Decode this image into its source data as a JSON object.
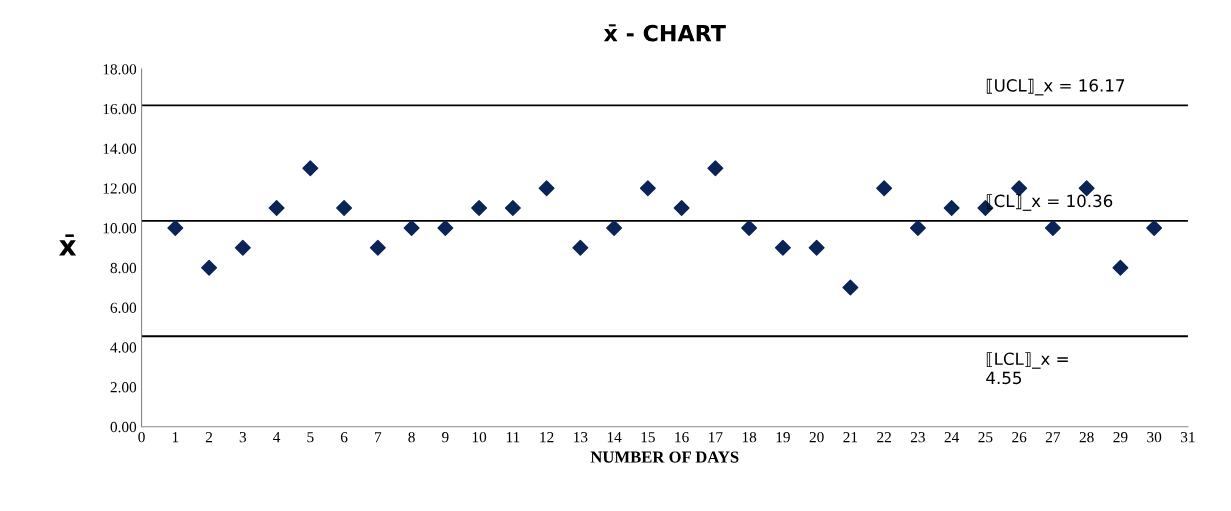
{
  "chart_data": {
    "type": "scatter",
    "title": "x̄ - CHART",
    "xlabel": "NUMBER OF DAYS",
    "ylabel": "x̄",
    "x": [
      1,
      2,
      3,
      4,
      5,
      6,
      7,
      8,
      9,
      10,
      11,
      12,
      13,
      14,
      15,
      16,
      17,
      18,
      19,
      20,
      21,
      22,
      23,
      24,
      25,
      26,
      27,
      28,
      29,
      30
    ],
    "series": [
      {
        "color": "#0a2458",
        "values": [
          10,
          8,
          9,
          11,
          13,
          11,
          9,
          10,
          10,
          11,
          11,
          12,
          9,
          10,
          12,
          11,
          13,
          10,
          9,
          9,
          7,
          12,
          10,
          11,
          11,
          12,
          10,
          12,
          8,
          10
        ]
      }
    ],
    "marker": "diamond",
    "grid": false,
    "legend": false,
    "xlim": [
      0,
      31
    ],
    "xticks": [
      0,
      1,
      2,
      3,
      4,
      5,
      6,
      7,
      8,
      9,
      10,
      11,
      12,
      13,
      14,
      15,
      16,
      17,
      18,
      19,
      20,
      21,
      22,
      23,
      24,
      25,
      26,
      27,
      28,
      29,
      30,
      31
    ],
    "ylim": [
      0,
      18
    ],
    "yticks": [
      {
        "value": 0,
        "label": "0.00"
      },
      {
        "value": 2,
        "label": "2.00"
      },
      {
        "value": 4,
        "label": "4.00"
      },
      {
        "value": 6,
        "label": "6.00"
      },
      {
        "value": 8,
        "label": "8.00"
      },
      {
        "value": 10,
        "label": "10.00"
      },
      {
        "value": 12,
        "label": "12.00"
      },
      {
        "value": 14,
        "label": "14.00"
      },
      {
        "value": 16,
        "label": "16.00"
      },
      {
        "value": 18,
        "label": "18.00"
      }
    ],
    "ref_lines": [
      {
        "axis": "y",
        "value": 16.17,
        "label": "⟦UCL⟧_x = 16.17",
        "color": "#000000"
      },
      {
        "axis": "y",
        "value": 10.36,
        "label": "⟦CL⟧_x = 10.36",
        "color": "#000000"
      },
      {
        "axis": "y",
        "value": 4.55,
        "label": "⟦LCL⟧_x =\n4.55",
        "color": "#000000"
      }
    ]
  }
}
